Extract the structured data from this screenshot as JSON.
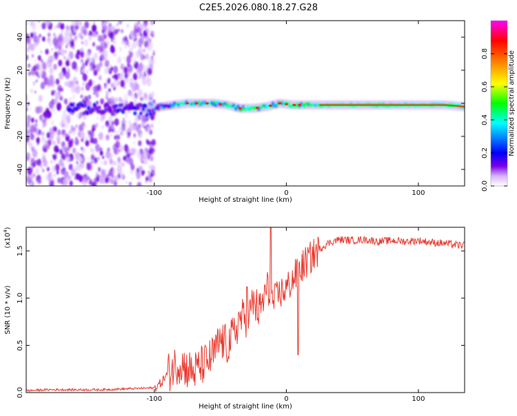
{
  "chart_data": [
    {
      "type": "heatmap",
      "title": "C2E5.2026.080.18.27.G28",
      "xlabel": "Height of straight line (km)",
      "ylabel": "Frequency (Hz)",
      "xlim": [
        -197,
        135
      ],
      "ylim": [
        -50,
        50
      ],
      "x_ticks": [
        -100,
        0,
        100
      ],
      "x_tick_labels": [
        "-100",
        "0",
        "100"
      ],
      "y_ticks": [
        40,
        20,
        0,
        -20,
        -40
      ],
      "y_tick_labels": [
        "40",
        "20",
        "0",
        "-20",
        "-40"
      ],
      "noise_region_x": [
        -197,
        -100
      ],
      "signal_track": {
        "x": [
          -160,
          -140,
          -120,
          -105,
          -95,
          -85,
          -75,
          -65,
          -55,
          -45,
          -35,
          -25,
          -15,
          -5,
          5,
          15,
          30,
          60,
          90,
          120,
          135
        ],
        "y": [
          -3,
          -4,
          -3,
          -4,
          -2,
          -1,
          0,
          0,
          0,
          -1,
          -3,
          -3,
          -2,
          0,
          -1,
          -1,
          -1,
          -1,
          -1,
          -1,
          -2
        ]
      },
      "colorbar": {
        "label": "Normalized spectral amplitude",
        "range": [
          0.0,
          1.0
        ],
        "ticks": [
          0.0,
          0.2,
          0.4,
          0.6,
          0.8
        ],
        "tick_labels": [
          "0.0",
          "0.2",
          "0.4",
          "0.6",
          "0.8"
        ],
        "colors": [
          "#ffffff",
          "#d9b3ff",
          "#7a00e6",
          "#0000ff",
          "#00ffff",
          "#00ff00",
          "#ffff00",
          "#ff8000",
          "#ff0000",
          "#ff00ff"
        ]
      }
    },
    {
      "type": "line",
      "xlabel": "Height of straight line (km)",
      "ylabel": "SNR (10 * v/v)",
      "y_scale_label_base": "(x10",
      "y_scale_label_exp": "4",
      "y_scale_label_close": ")",
      "xlim": [
        -197,
        135
      ],
      "ylim": [
        0,
        1.75
      ],
      "x_ticks": [
        -100,
        0,
        100
      ],
      "x_tick_labels": [
        "-100",
        "0",
        "100"
      ],
      "y_ticks": [
        0.0,
        0.5,
        1.0,
        1.5
      ],
      "y_tick_labels": [
        "0.0",
        "0.5",
        "1.0",
        "1.5"
      ],
      "line_color": "#e8352a",
      "series": [
        {
          "name": "SNR",
          "x": [
            -197,
            -180,
            -160,
            -140,
            -120,
            -100,
            -95,
            -90,
            -85,
            -80,
            -75,
            -70,
            -65,
            -60,
            -55,
            -50,
            -45,
            -40,
            -35,
            -30,
            -25,
            -20,
            -15,
            -10,
            -5,
            0,
            5,
            10,
            15,
            20,
            25,
            30,
            35,
            40,
            50,
            60,
            70,
            80,
            90,
            100,
            110,
            120,
            130,
            135
          ],
          "y": [
            0.02,
            0.03,
            0.03,
            0.03,
            0.04,
            0.05,
            0.1,
            0.2,
            0.28,
            0.32,
            0.25,
            0.22,
            0.28,
            0.32,
            0.4,
            0.55,
            0.5,
            0.6,
            0.8,
            0.75,
            0.95,
            0.85,
            1.1,
            0.95,
            1.05,
            1.1,
            1.2,
            1.3,
            1.38,
            1.45,
            1.52,
            1.57,
            1.6,
            1.62,
            1.61,
            1.62,
            1.6,
            1.61,
            1.6,
            1.61,
            1.59,
            1.58,
            1.56,
            1.56
          ]
        }
      ]
    }
  ]
}
